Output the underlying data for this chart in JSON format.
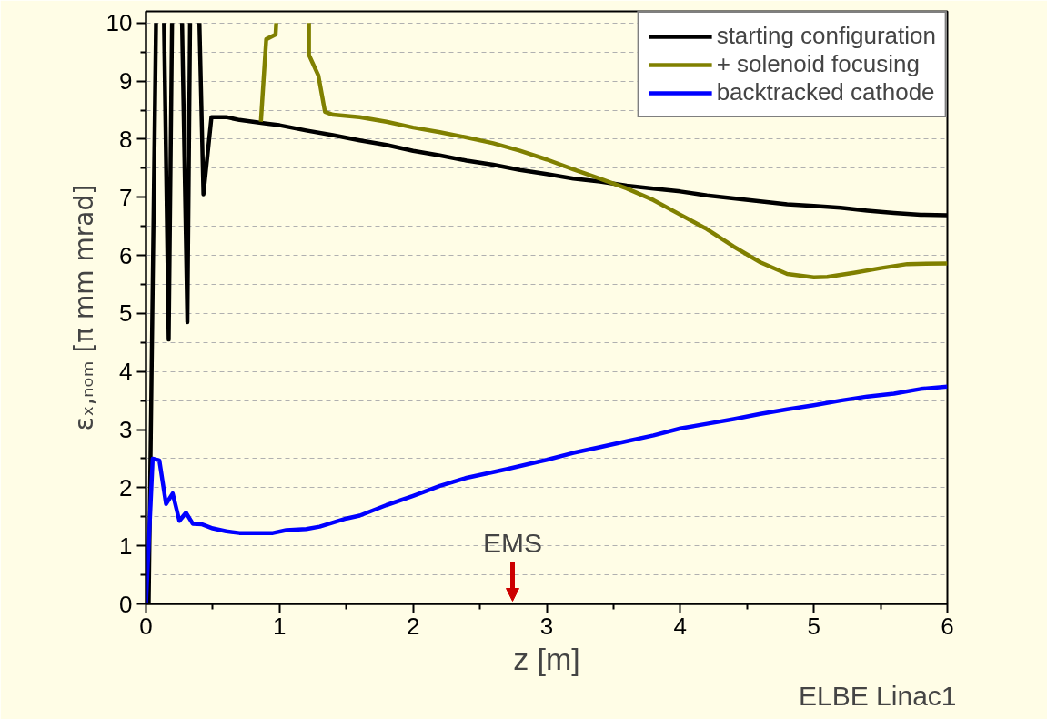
{
  "chart_data": {
    "type": "line",
    "xlabel": "z [m]",
    "ylabel": "εₓ,ₙₒₘ [π mm mrad]",
    "xlim": [
      0,
      6
    ],
    "ylim": [
      0,
      10.2
    ],
    "xticks": [
      0,
      1,
      2,
      3,
      4,
      5,
      6
    ],
    "yticks": [
      0,
      1,
      2,
      3,
      4,
      5,
      6,
      7,
      8,
      9,
      10
    ],
    "grid": "y",
    "legend": "top right",
    "line_style": "solid",
    "marker": "none",
    "series": [
      {
        "name": "starting configuration",
        "color": "#000000",
        "x": [
          0.02,
          0.075,
          0.1,
          0.135,
          0.17,
          0.195,
          0.23,
          0.27,
          0.31,
          0.33,
          0.36,
          0.4,
          0.43,
          0.49,
          0.6,
          0.7,
          0.8,
          0.9,
          1.0,
          1.2,
          1.4,
          1.6,
          1.8,
          2.0,
          2.2,
          2.4,
          2.6,
          2.8,
          3.0,
          3.2,
          3.4,
          3.6,
          3.8,
          4.0,
          4.2,
          4.4,
          4.6,
          4.8,
          5.0,
          5.2,
          5.4,
          5.6,
          5.8,
          6.0
        ],
        "values": [
          0,
          10,
          null,
          10,
          4.55,
          10,
          null,
          10,
          4.85,
          10,
          null,
          10,
          7.05,
          8.38,
          8.38,
          8.33,
          8.3,
          8.27,
          8.24,
          8.15,
          8.07,
          7.98,
          7.9,
          7.8,
          7.72,
          7.63,
          7.56,
          7.47,
          7.4,
          7.32,
          7.27,
          7.2,
          7.15,
          7.1,
          7.03,
          6.98,
          6.93,
          6.88,
          6.85,
          6.82,
          6.77,
          6.73,
          6.7,
          6.69
        ]
      },
      {
        "name": "+ solenoid focusing",
        "color": "#808000",
        "x": [
          0.86,
          0.9,
          0.97,
          0.975,
          1.1,
          1.22,
          1.22,
          1.29,
          1.34,
          1.4,
          1.6,
          1.8,
          2.0,
          2.2,
          2.4,
          2.6,
          2.8,
          3.0,
          3.2,
          3.4,
          3.6,
          3.8,
          4.0,
          4.2,
          4.4,
          4.6,
          4.8,
          5.0,
          5.1,
          5.3,
          5.5,
          5.7,
          6.0
        ],
        "values": [
          8.3,
          9.72,
          9.8,
          10,
          null,
          10,
          9.45,
          9.1,
          8.47,
          8.42,
          8.38,
          8.3,
          8.2,
          8.12,
          8.03,
          7.93,
          7.8,
          7.65,
          7.48,
          7.32,
          7.15,
          6.95,
          6.7,
          6.45,
          6.15,
          5.88,
          5.68,
          5.62,
          5.63,
          5.7,
          5.78,
          5.85,
          5.86
        ]
      },
      {
        "name": "backtracked cathode",
        "color": "#0000ff",
        "x": [
          0,
          0.05,
          0.1,
          0.15,
          0.2,
          0.25,
          0.3,
          0.35,
          0.42,
          0.5,
          0.6,
          0.7,
          0.8,
          0.95,
          1.05,
          1.2,
          1.3,
          1.5,
          1.6,
          1.8,
          2.0,
          2.2,
          2.4,
          2.7,
          3.0,
          3.2,
          3.4,
          3.6,
          3.8,
          4.0,
          4.2,
          4.4,
          4.6,
          4.8,
          5.0,
          5.2,
          5.4,
          5.6,
          5.8,
          6.0
        ],
        "values": [
          0,
          2.5,
          2.47,
          1.72,
          1.9,
          1.43,
          1.57,
          1.38,
          1.37,
          1.3,
          1.25,
          1.22,
          1.22,
          1.22,
          1.27,
          1.29,
          1.33,
          1.47,
          1.52,
          1.7,
          1.86,
          2.03,
          2.17,
          2.32,
          2.48,
          2.6,
          2.7,
          2.8,
          2.9,
          3.02,
          3.1,
          3.18,
          3.27,
          3.35,
          3.42,
          3.5,
          3.57,
          3.62,
          3.7,
          3.74
        ]
      }
    ],
    "annotations": [
      "EMS",
      "ELBE Linac1"
    ]
  }
}
